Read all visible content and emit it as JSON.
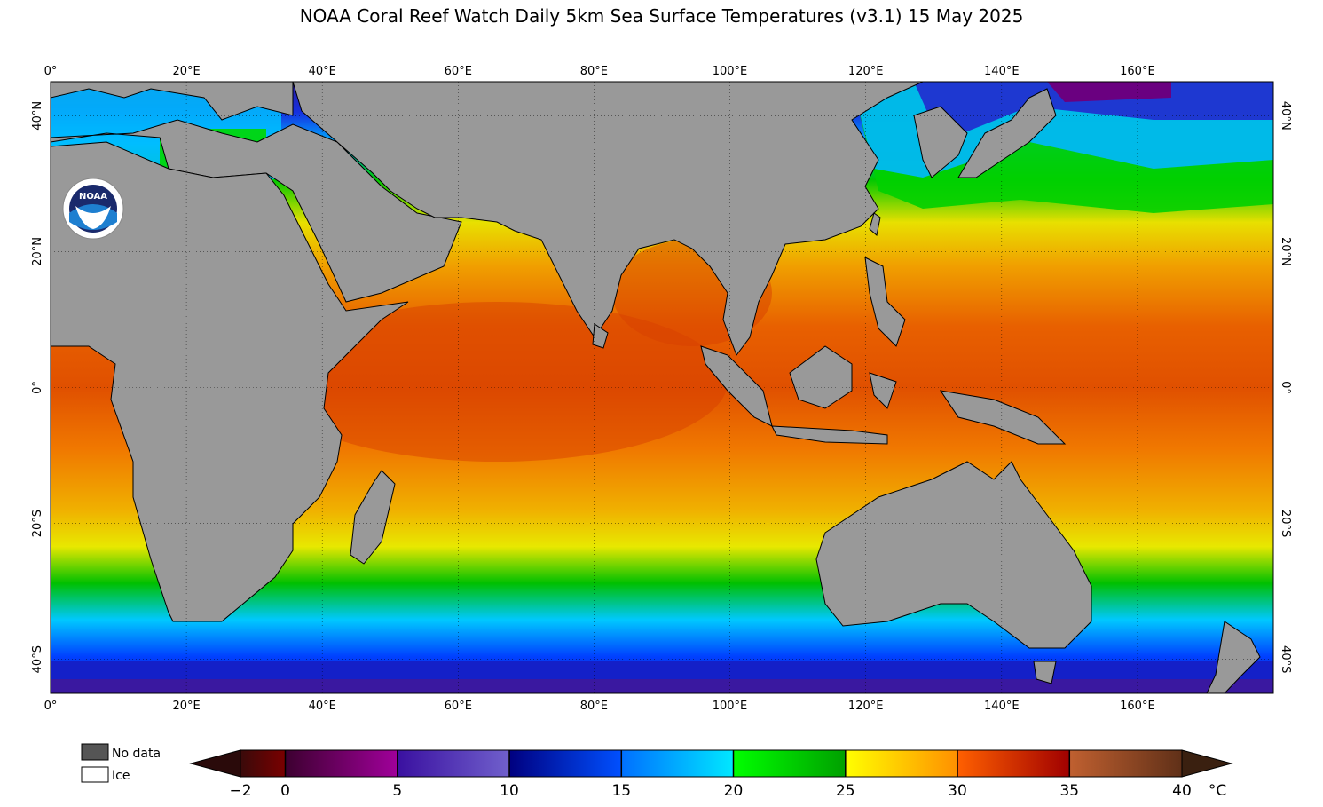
{
  "title": "NOAA Coral Reef Watch Daily 5km Sea Surface Temperatures  (v3.1)   15 May 2025",
  "logo_text": "NOAA",
  "map": {
    "projection": "equirectangular",
    "lon_range": [
      0,
      180
    ],
    "lat_range": [
      -45,
      45
    ],
    "land_color": "#999999",
    "x_ticks": [
      "0°",
      "20°E",
      "40°E",
      "60°E",
      "80°E",
      "100°E",
      "120°E",
      "140°E",
      "160°E"
    ],
    "y_ticks_left": [
      "40°N",
      "20°N",
      "0°",
      "20°S",
      "40°S"
    ],
    "y_ticks_right": [
      "40°N",
      "20°N",
      "0°",
      "20°S",
      "40°S"
    ]
  },
  "legend": {
    "no_data": "No data",
    "ice": "Ice",
    "no_data_color": "#555555",
    "ice_color": "#ffffff"
  },
  "colorbar": {
    "labels": [
      "−2",
      "0",
      "5",
      "10",
      "15",
      "20",
      "25",
      "30",
      "35",
      "40"
    ],
    "unit": "°C",
    "min": -2,
    "max": 40,
    "colors": {
      "below": "#2a0a0a",
      "neg2_0": [
        "#3a0a0a",
        "#7a0000"
      ],
      "c0_5": [
        "#3d0030",
        "#a0009a"
      ],
      "c5_10": [
        "#3a10a0",
        "#7060cc"
      ],
      "c10_15": [
        "#000080",
        "#0050ff"
      ],
      "c15_20": [
        "#0070ff",
        "#00e8ff"
      ],
      "c20_25": [
        "#00ff00",
        "#00a000"
      ],
      "c25_30": [
        "#ffff00",
        "#ff9000"
      ],
      "c30_35": [
        "#ff6000",
        "#a00000"
      ],
      "c35_40": [
        "#c06030",
        "#603018"
      ],
      "above": "#3a2010"
    }
  }
}
